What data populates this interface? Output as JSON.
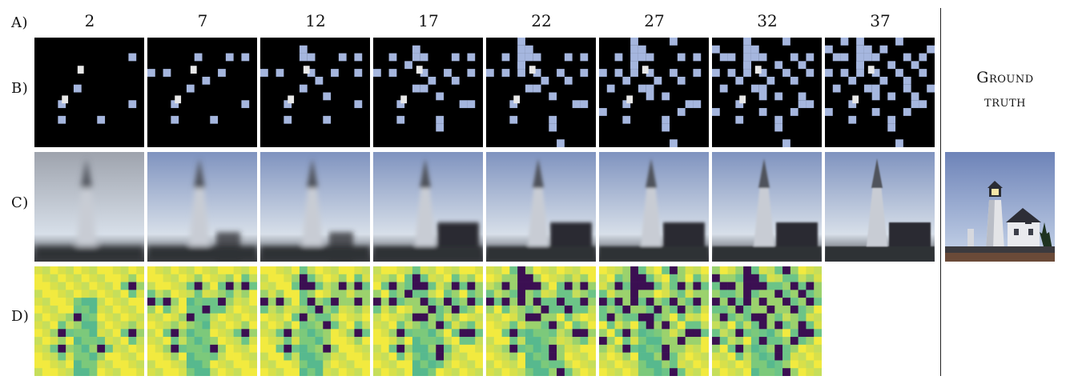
{
  "row_labels": {
    "a": "A)",
    "b": "B)",
    "c": "C)",
    "d": "D)"
  },
  "columns": [
    "2",
    "7",
    "12",
    "17",
    "22",
    "27",
    "32",
    "37"
  ],
  "ground_truth_label": {
    "line1": "Ground",
    "line2": "truth"
  },
  "colors": {
    "mask_bg": "#000000",
    "mask_patch": "#a5b6de",
    "sky_top": "#7f93bf",
    "sky_bottom": "#d7dfe9",
    "lighthouse": "#c8ccd4",
    "house": "#2b2c33",
    "uncert_low": "#f2ea3f",
    "uncert_mid": "#3fb09b",
    "uncert_sampled": "#3b0f52"
  }
}
